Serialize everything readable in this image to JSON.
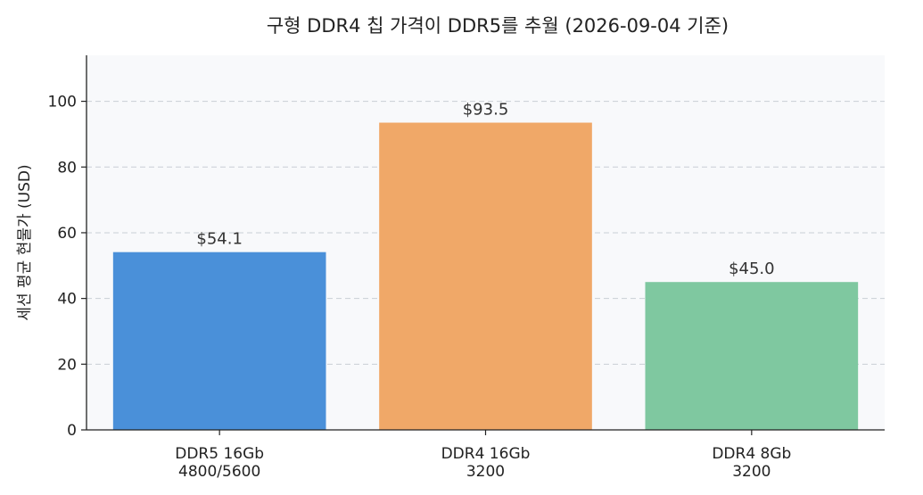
{
  "chart_data": {
    "type": "bar",
    "title": "구형 DDR4 칩 가격이 DDR5를 추월 (2026-09-04 기준)",
    "xlabel": "",
    "ylabel": "세션 평균 현물가 (USD)",
    "ylim": [
      0,
      114
    ],
    "yticks": [
      0,
      20,
      40,
      60,
      80,
      100
    ],
    "grid": true,
    "categories": [
      [
        "DDR5 16Gb",
        "4800/5600"
      ],
      [
        "DDR4 16Gb",
        "3200"
      ],
      [
        "DDR4 8Gb",
        "3200"
      ]
    ],
    "values": [
      54.1,
      93.5,
      45.0
    ],
    "data_labels": [
      "$54.1",
      "$93.5",
      "$45.0"
    ],
    "colors": [
      "#4a90d9",
      "#f0a868",
      "#7fc8a0"
    ],
    "plot_background": "#f8f9fb"
  }
}
